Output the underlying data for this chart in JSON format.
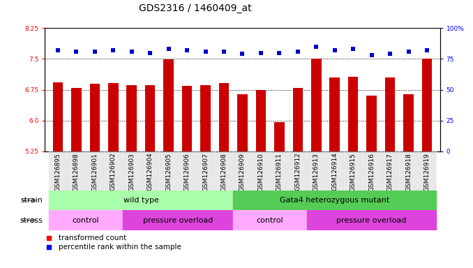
{
  "title": "GDS2316 / 1460409_at",
  "samples": [
    "GSM126895",
    "GSM126898",
    "GSM126901",
    "GSM126902",
    "GSM126903",
    "GSM126904",
    "GSM126905",
    "GSM126906",
    "GSM126907",
    "GSM126908",
    "GSM126909",
    "GSM126910",
    "GSM126911",
    "GSM126912",
    "GSM126913",
    "GSM126914",
    "GSM126915",
    "GSM126916",
    "GSM126917",
    "GSM126918",
    "GSM126919"
  ],
  "bar_values": [
    6.93,
    6.8,
    6.9,
    6.92,
    6.86,
    6.87,
    7.49,
    6.84,
    6.86,
    6.92,
    6.65,
    6.75,
    5.96,
    6.8,
    7.5,
    7.05,
    7.07,
    6.6,
    7.05,
    6.65,
    7.5
  ],
  "percentile_values": [
    82,
    81,
    81,
    82,
    81,
    80,
    83,
    82,
    81,
    81,
    79,
    80,
    80,
    81,
    85,
    82,
    83,
    78,
    79,
    81,
    82
  ],
  "ylim_left": [
    5.25,
    8.25
  ],
  "ylim_right": [
    0,
    100
  ],
  "yticks_left": [
    5.25,
    6.0,
    6.75,
    7.5,
    8.25
  ],
  "yticks_right": [
    0,
    25,
    50,
    75,
    100
  ],
  "grid_values": [
    6.0,
    6.75,
    7.5
  ],
  "bar_color": "#cc0000",
  "dot_color": "#0000cc",
  "bar_width": 0.55,
  "strain_groups": [
    {
      "label": "wild type",
      "start": 0,
      "end": 10,
      "color": "#aaffaa"
    },
    {
      "label": "Gata4 heterozygous mutant",
      "start": 10,
      "end": 21,
      "color": "#55cc55"
    }
  ],
  "stress_groups": [
    {
      "label": "control",
      "start": 0,
      "end": 4,
      "color": "#ffaaff"
    },
    {
      "label": "pressure overload",
      "start": 4,
      "end": 10,
      "color": "#dd44dd"
    },
    {
      "label": "control",
      "start": 10,
      "end": 14,
      "color": "#ffaaff"
    },
    {
      "label": "pressure overload",
      "start": 14,
      "end": 21,
      "color": "#dd44dd"
    }
  ],
  "legend_items": [
    {
      "label": "transformed count",
      "color": "#cc0000"
    },
    {
      "label": "percentile rank within the sample",
      "color": "#0000cc"
    }
  ],
  "strain_label": "strain",
  "stress_label": "stress",
  "title_fontsize": 10,
  "tick_fontsize": 6.5,
  "label_fontsize": 8,
  "row_label_fontsize": 8,
  "group_fontsize": 8
}
